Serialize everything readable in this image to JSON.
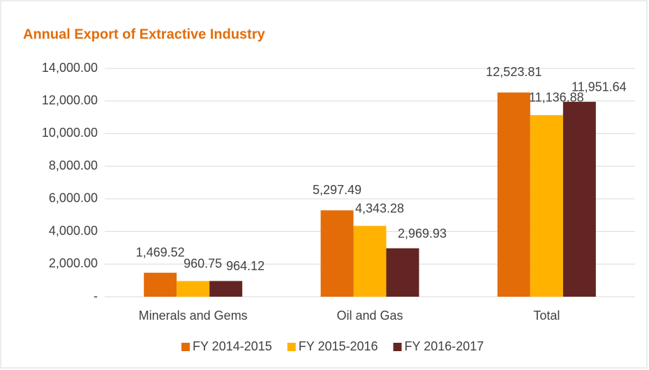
{
  "chart_data": {
    "type": "bar",
    "title": "Annual Export of Extractive Industry",
    "categories": [
      "Minerals and Gems",
      "Oil and Gas",
      "Total"
    ],
    "series": [
      {
        "name": "FY 2014-2015",
        "color": "#e36c09",
        "values": [
          1469.52,
          5297.49,
          12523.81
        ],
        "value_labels": [
          "1,469.52",
          "5,297.49",
          "12,523.81"
        ]
      },
      {
        "name": "FY 2015-2016",
        "color": "#ffb300",
        "values": [
          960.75,
          4343.28,
          11136.88
        ],
        "value_labels": [
          "960.75",
          "4,343.28",
          "11,136.88"
        ]
      },
      {
        "name": "FY 2016-2017",
        "color": "#632523",
        "values": [
          964.12,
          2969.93,
          11951.64
        ],
        "value_labels": [
          "964.12",
          "2,969.93",
          "11,951.64"
        ]
      }
    ],
    "ylim": [
      0,
      14000
    ],
    "yticks": [
      {
        "value": 0,
        "label": "-"
      },
      {
        "value": 2000,
        "label": "2,000.00"
      },
      {
        "value": 4000,
        "label": "4,000.00"
      },
      {
        "value": 6000,
        "label": "6,000.00"
      },
      {
        "value": 8000,
        "label": "8,000.00"
      },
      {
        "value": 10000,
        "label": "10,000.00"
      },
      {
        "value": 12000,
        "label": "12,000.00"
      },
      {
        "value": 14000,
        "label": "14,000.00"
      }
    ],
    "grid": true,
    "legend": "bottom"
  }
}
